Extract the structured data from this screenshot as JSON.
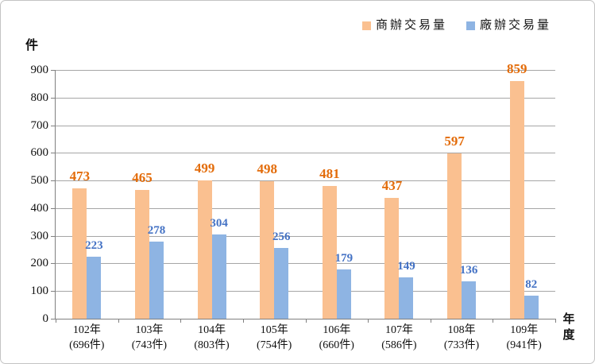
{
  "chart_data": {
    "type": "bar",
    "title": "",
    "y_axis_title": "件",
    "x_axis_title": "年度",
    "categories": [
      "102年",
      "103年",
      "104年",
      "105年",
      "106年",
      "107年",
      "108年",
      "109年"
    ],
    "category_sublabels": [
      "(696件)",
      "(743件)",
      "(803件)",
      "(754件)",
      "(660件)",
      "(586件)",
      "(733件)",
      "(941件)"
    ],
    "series": [
      {
        "name": "商辦交易量",
        "bar_color": "#FAC090",
        "label_color": "#E36C0A",
        "values": [
          473,
          465,
          499,
          498,
          481,
          437,
          597,
          859
        ]
      },
      {
        "name": "廠辦交易量",
        "bar_color": "#8EB4E3",
        "label_color": "#4472C4",
        "values": [
          223,
          278,
          304,
          256,
          179,
          149,
          136,
          82
        ]
      }
    ],
    "ylim": [
      0,
      900
    ],
    "y_tick_step": 100,
    "grid": "horizontal",
    "legend_position": "top-right",
    "axis_color": "#808080",
    "gridline_color": "#A6A6A6"
  }
}
